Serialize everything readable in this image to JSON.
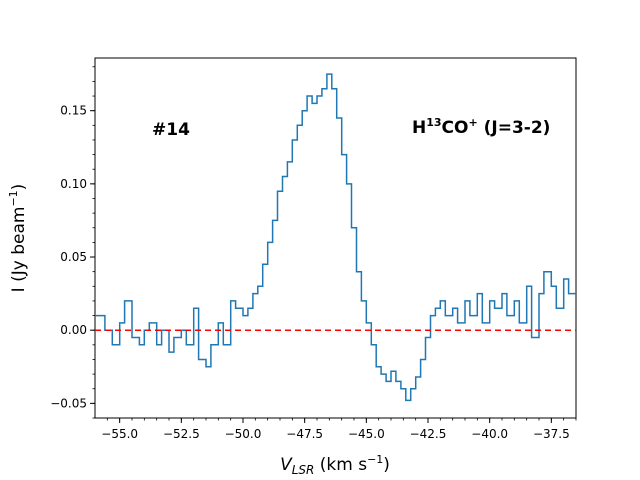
{
  "chart_data": {
    "type": "line",
    "style": "step",
    "xlabel_main": "V",
    "xlabel_sub": "LSR",
    "xlabel_units": " (km s",
    "xlabel_units_exp": "−1",
    "xlabel_close": ")",
    "ylabel_main": "I (Jy beam",
    "ylabel_exp": "−1",
    "ylabel_close": ")",
    "xlim": [
      -56.0,
      -36.5
    ],
    "ylim": [
      -0.06,
      0.186
    ],
    "xticks": [
      -55.0,
      -52.5,
      -50.0,
      -47.5,
      -45.0,
      -42.5,
      -40.0,
      -37.5
    ],
    "xtick_labels": [
      "−55.0",
      "−52.5",
      "−50.0",
      "−47.5",
      "−45.0",
      "−42.5",
      "−40.0",
      "−37.5"
    ],
    "yticks": [
      -0.05,
      0.0,
      0.05,
      0.1,
      0.15
    ],
    "ytick_labels": [
      "−0.05",
      "0.00",
      "0.05",
      "0.10",
      "0.15"
    ],
    "baseline": 0.0,
    "annotations": {
      "source_id": "#14",
      "line_prefix": "H",
      "line_sup1": "13",
      "line_mid": "CO",
      "line_sup2": "+",
      "line_suffix": " (J=3-2)"
    },
    "colors": {
      "spectrum": "#1f77b4",
      "baseline": "#ff0000"
    },
    "series": [
      {
        "x": [
          -56.0,
          -55.6,
          -55.3,
          -55.0,
          -54.8,
          -54.5,
          -54.2,
          -54.0,
          -53.8,
          -53.5,
          -53.3,
          -53.0,
          -52.8,
          -52.5,
          -52.3,
          -52.0,
          -51.8,
          -51.5,
          -51.3,
          -51.0,
          -50.8,
          -50.5,
          -50.3,
          -50.0,
          -49.8,
          -49.6,
          -49.4,
          -49.2,
          -49.0,
          -48.8,
          -48.6,
          -48.4,
          -48.2,
          -48.0,
          -47.8,
          -47.6,
          -47.4,
          -47.2,
          -47.0,
          -46.8,
          -46.6,
          -46.4,
          -46.2,
          -46.0,
          -45.8,
          -45.6,
          -45.4,
          -45.2,
          -45.0,
          -44.8,
          -44.6,
          -44.4,
          -44.2,
          -44.0,
          -43.8,
          -43.6,
          -43.4,
          -43.2,
          -43.0,
          -42.8,
          -42.6,
          -42.4,
          -42.2,
          -42.0,
          -41.8,
          -41.5,
          -41.3,
          -41.0,
          -40.8,
          -40.5,
          -40.3,
          -40.0,
          -39.8,
          -39.5,
          -39.3,
          -39.0,
          -38.8,
          -38.5,
          -38.3,
          -38.0,
          -37.8,
          -37.5,
          -37.3,
          -37.0,
          -36.8
        ],
        "y": [
          0.01,
          0.0,
          -0.01,
          0.005,
          0.02,
          -0.005,
          -0.01,
          0.0,
          0.005,
          -0.01,
          0.0,
          -0.015,
          -0.005,
          0.0,
          -0.01,
          0.015,
          -0.02,
          -0.025,
          -0.01,
          0.005,
          -0.01,
          0.02,
          0.015,
          0.01,
          0.015,
          0.025,
          0.03,
          0.045,
          0.06,
          0.075,
          0.095,
          0.105,
          0.115,
          0.13,
          0.14,
          0.15,
          0.16,
          0.155,
          0.16,
          0.165,
          0.175,
          0.165,
          0.145,
          0.12,
          0.1,
          0.07,
          0.04,
          0.02,
          0.005,
          -0.01,
          -0.025,
          -0.03,
          -0.035,
          -0.028,
          -0.035,
          -0.04,
          -0.048,
          -0.04,
          -0.032,
          -0.02,
          -0.005,
          0.01,
          0.015,
          0.02,
          0.01,
          0.015,
          0.005,
          0.02,
          0.01,
          0.025,
          0.005,
          0.02,
          0.015,
          0.025,
          0.01,
          0.02,
          0.005,
          0.03,
          -0.005,
          0.025,
          0.04,
          0.03,
          0.015,
          0.035,
          0.025
        ]
      }
    ]
  }
}
